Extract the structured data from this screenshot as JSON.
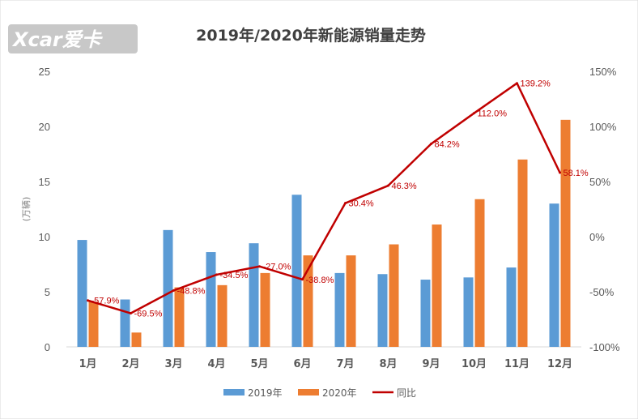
{
  "logo": {
    "text": "Xcar爱卡"
  },
  "chart_data": {
    "type": "bar",
    "title": "2019年/2020年新能源销量走势",
    "categories": [
      "1月",
      "2月",
      "3月",
      "4月",
      "5月",
      "6月",
      "7月",
      "8月",
      "9月",
      "10月",
      "11月",
      "12月"
    ],
    "y_left": {
      "label": "(万辆)",
      "ylim": [
        0,
        25
      ],
      "ticks": [
        "0",
        "5",
        "10",
        "15",
        "20",
        "25"
      ]
    },
    "y_right": {
      "label": "",
      "ylim": [
        -100,
        150
      ],
      "ticks": [
        "-100%",
        "-50%",
        "0%",
        "50%",
        "100%",
        "150%"
      ]
    },
    "series": [
      {
        "name": "2019年",
        "type": "bar",
        "axis": "left",
        "color": "#5b9bd5",
        "values": [
          9.7,
          4.3,
          10.6,
          8.6,
          9.4,
          13.8,
          6.7,
          6.6,
          6.1,
          6.3,
          7.2,
          13.0
        ]
      },
      {
        "name": "2020年",
        "type": "bar",
        "axis": "left",
        "color": "#ed7d31",
        "values": [
          4.1,
          1.3,
          5.4,
          5.6,
          6.7,
          8.3,
          8.3,
          9.3,
          11.1,
          13.4,
          17.0,
          20.6
        ]
      },
      {
        "name": "同比",
        "type": "line",
        "axis": "right",
        "color": "#c00000",
        "values": [
          -57.9,
          -69.5,
          -48.8,
          -34.5,
          -27.0,
          -38.8,
          30.4,
          46.3,
          84.2,
          112.0,
          139.2,
          58.1
        ],
        "labels": [
          "-57.9%",
          "-69.5%",
          "-48.8%",
          "-34.5%",
          "-27.0%",
          "-38.8%",
          "30.4%",
          "46.3%",
          "84.2%",
          "112.0%",
          "139.2%",
          "58.1%"
        ]
      }
    ],
    "grid": false,
    "legend_position": "bottom"
  }
}
